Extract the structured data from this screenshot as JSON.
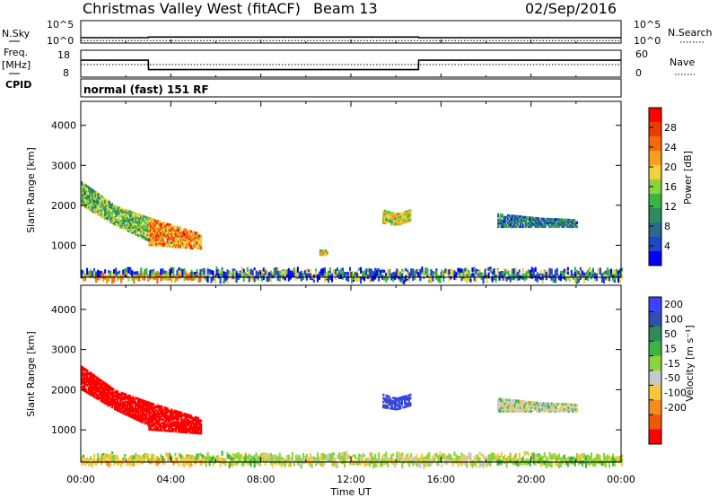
{
  "header": {
    "title": "Christmas Valley West (fitACF)",
    "beam": "Beam 13",
    "date": "02/Sep/2016"
  },
  "left_labels": {
    "nsky": "N.Sky",
    "freq": "Freq.",
    "mhz": "[MHz]",
    "cpid": "CPID"
  },
  "right_labels": {
    "nsearch": "N.Search",
    "nave": "Nave"
  },
  "cpid_text": "normal (fast) 151 RF",
  "x_axis": {
    "label": "Time UT",
    "ticks": [
      "00:00",
      "04:00",
      "08:00",
      "12:00",
      "16:00",
      "20:00",
      "00:00"
    ]
  },
  "colors": {
    "power": [
      "#0000ff",
      "#1f45c8",
      "#2a6a8c",
      "#2e8c5a",
      "#3cb443",
      "#8cd43c",
      "#f0d23c",
      "#f5a01e",
      "#f56a0a",
      "#eb3c00",
      "#ff0000"
    ],
    "velocity_pos": [
      "#4040ff",
      "#3050b0",
      "#2e8c5a",
      "#3cb443",
      "#8cd43c"
    ],
    "velocity_neg": [
      "#c8c8c8",
      "#f5c83c",
      "#f58c1e",
      "#eb5a0a",
      "#ff0000"
    ],
    "ground": "#f5c828",
    "ground_green": "#6ccf3c"
  },
  "chart_data": [
    {
      "type": "line",
      "name": "noise",
      "left_axis_ticks": [
        "10^5",
        "10^0"
      ],
      "right_axis_ticks": [
        "10^5",
        "10^0"
      ],
      "x": [
        0,
        3,
        3.01,
        15,
        15.01,
        24
      ],
      "sky": [
        1.2,
        1.2,
        1.35,
        1.35,
        1.2,
        1.2
      ],
      "search": [
        0.55,
        0.55,
        0.55,
        0.55,
        0.55,
        0.55
      ],
      "ylim": [
        0,
        5
      ]
    },
    {
      "type": "line",
      "name": "freq_nave",
      "left_axis_ticks": [
        "18",
        "8"
      ],
      "right_axis_ticks": [
        "60",
        "0"
      ],
      "x": [
        0,
        3,
        3.01,
        15,
        15.01,
        24
      ],
      "freq": [
        14.3,
        14.3,
        10.8,
        10.8,
        14.3,
        14.3
      ],
      "nave": [
        28,
        28,
        28,
        28,
        28,
        28
      ],
      "freq_ylim": [
        8,
        18
      ],
      "nave_ylim": [
        0,
        60
      ]
    },
    {
      "type": "heatmap",
      "name": "power",
      "ylabel": "Slant Range [km]",
      "y_ticks": [
        1000,
        2000,
        3000,
        4000
      ],
      "ylim": [
        200,
        4600
      ],
      "xlim": [
        0,
        24
      ],
      "colorbar_label": "Power [dB]",
      "colorbar_ticks": [
        4,
        8,
        12,
        16,
        20,
        24,
        28
      ],
      "colorbar_range": [
        0,
        32
      ],
      "echo_regions": [
        {
          "t0": 0.0,
          "t1": 3.0,
          "r_top": [
            2600,
            2000,
            1700
          ],
          "r_bot": [
            2000,
            1500,
            1100
          ],
          "level": 14
        },
        {
          "t0": 3.0,
          "t1": 5.3,
          "r_top": [
            1700,
            1500,
            1300
          ],
          "r_bot": [
            1000,
            950,
            900
          ],
          "level": 24
        },
        {
          "t0": 10.6,
          "t1": 10.9,
          "r_top": [
            900,
            900,
            900
          ],
          "r_bot": [
            750,
            750,
            750
          ],
          "level": 20
        },
        {
          "t0": 13.4,
          "t1": 14.6,
          "r_top": [
            1900,
            1800,
            1900
          ],
          "r_bot": [
            1550,
            1500,
            1600
          ],
          "level": 18
        },
        {
          "t0": 18.5,
          "t1": 22.0,
          "r_top": [
            1800,
            1700,
            1650
          ],
          "r_bot": [
            1450,
            1450,
            1450
          ],
          "level": 8
        }
      ],
      "ground_band": {
        "r_top": 400,
        "r_bot": 200,
        "level": 4
      }
    },
    {
      "type": "heatmap",
      "name": "velocity",
      "ylabel": "Slant Range [km]",
      "y_ticks": [
        1000,
        2000,
        3000,
        4000
      ],
      "ylim": [
        200,
        4600
      ],
      "xlim": [
        0,
        24
      ],
      "colorbar_label": "Velocity [m s⁻¹]",
      "colorbar_ticks": [
        200,
        100,
        50,
        15,
        -15,
        -50,
        -100,
        -200
      ],
      "colorbar_range": [
        -250,
        250
      ],
      "echo_regions": [
        {
          "t0": 0.0,
          "t1": 3.0,
          "r_top": [
            2600,
            2000,
            1700
          ],
          "r_bot": [
            2000,
            1500,
            1100
          ],
          "velocity": -250
        },
        {
          "t0": 3.0,
          "t1": 5.3,
          "r_top": [
            1700,
            1500,
            1300
          ],
          "r_bot": [
            1000,
            950,
            900
          ],
          "velocity": -250
        },
        {
          "t0": 13.4,
          "t1": 14.6,
          "r_top": [
            1900,
            1800,
            1900
          ],
          "r_bot": [
            1550,
            1500,
            1600
          ],
          "velocity": 150
        },
        {
          "t0": 18.5,
          "t1": 22.0,
          "r_top": [
            1800,
            1700,
            1650
          ],
          "r_bot": [
            1450,
            1450,
            1450
          ],
          "velocity": 0
        }
      ],
      "ground_band": {
        "r_top": 400,
        "r_bot": 200,
        "velocity": -30
      }
    }
  ]
}
